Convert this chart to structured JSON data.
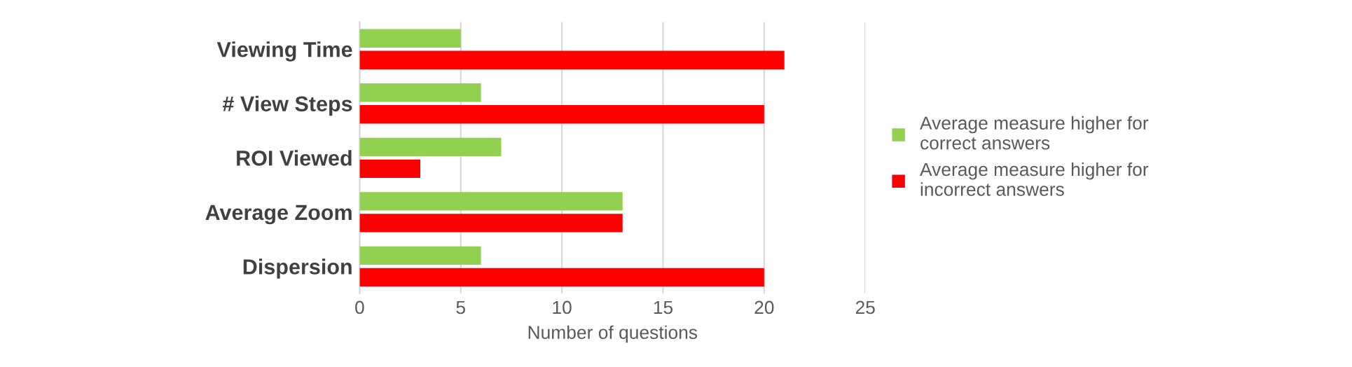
{
  "chart_data": {
    "type": "bar",
    "orientation": "horizontal",
    "xlabel": "Number of questions",
    "categories": [
      "Viewing Time",
      "# View Steps",
      "ROI Viewed",
      "Average Zoom",
      "Dispersion"
    ],
    "series": [
      {
        "name": "Average measure higher for correct answers",
        "color": "#92d050",
        "values": [
          5,
          6,
          7,
          13,
          6
        ]
      },
      {
        "name": "Average measure higher for incorrect answers",
        "color": "#ff0000",
        "values": [
          21,
          20,
          3,
          13,
          20
        ]
      }
    ],
    "xlim": [
      0,
      25
    ],
    "xticks": [
      0,
      5,
      10,
      15,
      20,
      25
    ],
    "grid": "x",
    "legend": "right"
  }
}
